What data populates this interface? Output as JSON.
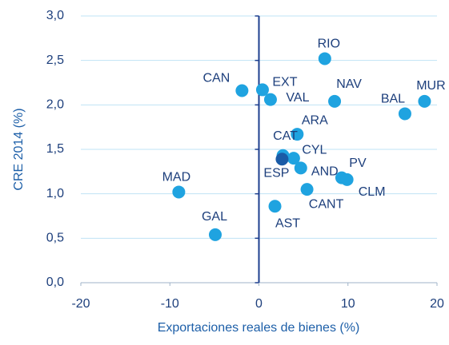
{
  "chart_data": {
    "type": "scatter",
    "xlabel": "Exportaciones reales de bienes (%)",
    "ylabel": "CRE 2014 (%)",
    "xlim": [
      -20,
      20
    ],
    "xticks": [
      -20,
      -10,
      0,
      10,
      20
    ],
    "ylim": [
      0,
      3
    ],
    "yticks": [
      {
        "value": 0,
        "label": "0,0"
      },
      {
        "value": 0.5,
        "label": "0,5"
      },
      {
        "value": 1,
        "label": "1,0"
      },
      {
        "value": 1.5,
        "label": "1,5"
      },
      {
        "value": 2,
        "label": "2,0"
      },
      {
        "value": 2.5,
        "label": "2,5"
      },
      {
        "value": 3,
        "label": "3,0"
      }
    ],
    "grid": true,
    "series": [
      {
        "color": "#1fa3e0",
        "labels": [
          "RIO",
          "CAN",
          "EXT",
          "VAL",
          "NAV",
          "MUR",
          "BAL",
          "ARA",
          "CAT",
          "CYL",
          "AND",
          "PV",
          "CLM",
          "CANT",
          "AST",
          "MAD",
          "GAL"
        ],
        "x": [
          7.4,
          -1.9,
          0.4,
          1.3,
          8.5,
          18.6,
          16.4,
          4.3,
          2.7,
          3.9,
          4.7,
          9.3,
          9.9,
          5.4,
          1.8,
          -9.0,
          -4.9
        ],
        "y": [
          2.52,
          2.16,
          2.17,
          2.06,
          2.04,
          2.04,
          1.9,
          1.67,
          1.43,
          1.4,
          1.29,
          1.18,
          1.16,
          1.05,
          0.86,
          1.02,
          0.54
        ]
      },
      {
        "color": "#1a5ba6",
        "labels": [
          "ESP"
        ],
        "x": [
          2.6
        ],
        "y": [
          1.39
        ]
      }
    ]
  }
}
